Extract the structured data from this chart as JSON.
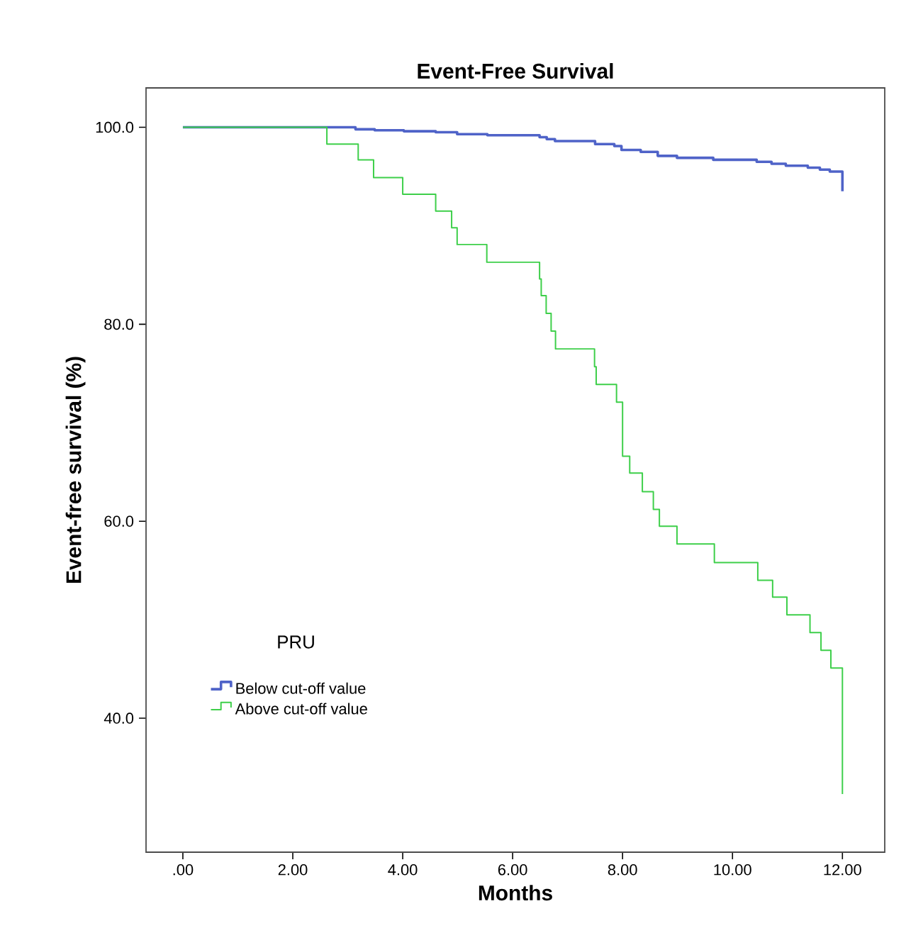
{
  "chart_data": {
    "type": "step",
    "title": "Event-Free Survival",
    "xlabel": "Months",
    "ylabel": "Event-free survival (%)",
    "legend_title": "PRU",
    "legend": "bottom left",
    "grid": false,
    "xlim": [
      -0.67,
      12.77
    ],
    "ylim": [
      26.4,
      104.0
    ],
    "xticks": [
      {
        "value": 0,
        "label": ".00"
      },
      {
        "value": 2,
        "label": "2.00"
      },
      {
        "value": 4,
        "label": "4.00"
      },
      {
        "value": 6,
        "label": "6.00"
      },
      {
        "value": 8,
        "label": "8.00"
      },
      {
        "value": 10,
        "label": "10.00"
      },
      {
        "value": 12,
        "label": "12.00"
      }
    ],
    "yticks": [
      {
        "value": 40,
        "label": "40.0"
      },
      {
        "value": 60,
        "label": "60.0"
      },
      {
        "value": 80,
        "label": "80.0"
      },
      {
        "value": 100,
        "label": "100.0"
      }
    ],
    "series": [
      {
        "name": "Below cut-off value",
        "color": "#4f63c8",
        "x": [
          0,
          3.14,
          3.49,
          4.02,
          4.6,
          4.99,
          5.54,
          6.49,
          6.62,
          6.77,
          7.5,
          7.85,
          7.98,
          8.33,
          8.64,
          8.99,
          9.65,
          10.44,
          10.71,
          10.97,
          11.37,
          11.59,
          11.77,
          12.0
        ],
        "values": [
          100,
          99.8,
          99.7,
          99.6,
          99.5,
          99.3,
          99.2,
          99.0,
          98.8,
          98.6,
          98.3,
          98.1,
          97.7,
          97.5,
          97.1,
          96.9,
          96.7,
          96.5,
          96.3,
          96.1,
          95.9,
          95.7,
          95.5,
          93.5
        ]
      },
      {
        "name": "Above cut-off value",
        "color": "#3ecf4a",
        "x": [
          0,
          2.62,
          3.19,
          3.47,
          4.0,
          4.6,
          4.89,
          4.99,
          5.53,
          6.49,
          6.52,
          6.61,
          6.7,
          6.78,
          7.49,
          7.52,
          7.89,
          8.0,
          8.13,
          8.36,
          8.56,
          8.67,
          8.99,
          9.67,
          10.46,
          10.73,
          10.99,
          11.41,
          11.61,
          11.79,
          12.0
        ],
        "values": [
          100,
          98.3,
          96.7,
          94.9,
          93.2,
          91.5,
          89.8,
          88.1,
          86.3,
          84.6,
          82.9,
          81.1,
          79.3,
          77.5,
          75.7,
          73.9,
          72.1,
          66.6,
          64.9,
          63.0,
          61.2,
          59.5,
          57.7,
          55.8,
          54.0,
          52.3,
          50.5,
          48.7,
          46.9,
          45.1,
          32.3
        ]
      }
    ]
  }
}
